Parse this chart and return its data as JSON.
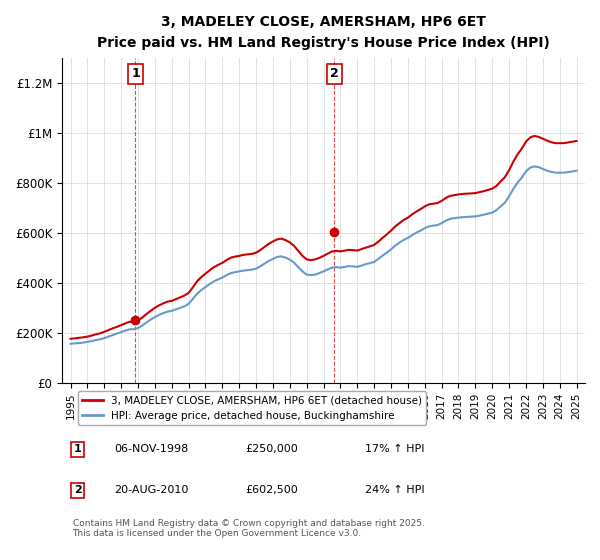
{
  "title": "3, MADELEY CLOSE, AMERSHAM, HP6 6ET",
  "subtitle": "Price paid vs. HM Land Registry's House Price Index (HPI)",
  "xlim": [
    1994.5,
    2025.5
  ],
  "ylim": [
    0,
    1300000
  ],
  "yticks": [
    0,
    200000,
    400000,
    600000,
    800000,
    1000000,
    1200000
  ],
  "ytick_labels": [
    "£0",
    "£200K",
    "£400K",
    "£600K",
    "£800K",
    "£1M",
    "£1.2M"
  ],
  "xticks": [
    1995,
    1996,
    1997,
    1998,
    1999,
    2000,
    2001,
    2002,
    2003,
    2004,
    2005,
    2006,
    2007,
    2008,
    2009,
    2010,
    2011,
    2012,
    2013,
    2014,
    2015,
    2016,
    2017,
    2018,
    2019,
    2020,
    2021,
    2022,
    2023,
    2024,
    2025
  ],
  "sale1_x": 1998.85,
  "sale1_y": 250000,
  "sale1_label": "1",
  "sale2_x": 2010.63,
  "sale2_y": 602500,
  "sale2_label": "2",
  "property_color": "#cc0000",
  "hpi_color": "#6699cc",
  "legend_property": "3, MADELEY CLOSE, AMERSHAM, HP6 6ET (detached house)",
  "legend_hpi": "HPI: Average price, detached house, Buckinghamshire",
  "note1_box": "1",
  "note1_date": "06-NOV-1998",
  "note1_price": "£250,000",
  "note1_hpi": "17% ↑ HPI",
  "note2_box": "2",
  "note2_date": "20-AUG-2010",
  "note2_price": "£602,500",
  "note2_hpi": "24% ↑ HPI",
  "footer": "Contains HM Land Registry data © Crown copyright and database right 2025.\nThis data is licensed under the Open Government Licence v3.0.",
  "hpi_data_x": [
    1995.0,
    1995.25,
    1995.5,
    1995.75,
    1996.0,
    1996.25,
    1996.5,
    1996.75,
    1997.0,
    1997.25,
    1997.5,
    1997.75,
    1998.0,
    1998.25,
    1998.5,
    1998.75,
    1999.0,
    1999.25,
    1999.5,
    1999.75,
    2000.0,
    2000.25,
    2000.5,
    2000.75,
    2001.0,
    2001.25,
    2001.5,
    2001.75,
    2002.0,
    2002.25,
    2002.5,
    2002.75,
    2003.0,
    2003.25,
    2003.5,
    2003.75,
    2004.0,
    2004.25,
    2004.5,
    2004.75,
    2005.0,
    2005.25,
    2005.5,
    2005.75,
    2006.0,
    2006.25,
    2006.5,
    2006.75,
    2007.0,
    2007.25,
    2007.5,
    2007.75,
    2008.0,
    2008.25,
    2008.5,
    2008.75,
    2009.0,
    2009.25,
    2009.5,
    2009.75,
    2010.0,
    2010.25,
    2010.5,
    2010.75,
    2011.0,
    2011.25,
    2011.5,
    2011.75,
    2012.0,
    2012.25,
    2012.5,
    2012.75,
    2013.0,
    2013.25,
    2013.5,
    2013.75,
    2014.0,
    2014.25,
    2014.5,
    2014.75,
    2015.0,
    2015.25,
    2015.5,
    2015.75,
    2016.0,
    2016.25,
    2016.5,
    2016.75,
    2017.0,
    2017.25,
    2017.5,
    2017.75,
    2018.0,
    2018.25,
    2018.5,
    2018.75,
    2019.0,
    2019.25,
    2019.5,
    2019.75,
    2020.0,
    2020.25,
    2020.5,
    2020.75,
    2021.0,
    2021.25,
    2021.5,
    2021.75,
    2022.0,
    2022.25,
    2022.5,
    2022.75,
    2023.0,
    2023.25,
    2023.5,
    2023.75,
    2024.0,
    2024.25,
    2024.5,
    2024.75,
    2025.0
  ],
  "hpi_data_y": [
    155000,
    157000,
    158000,
    160000,
    163000,
    166000,
    170000,
    173000,
    178000,
    184000,
    190000,
    196000,
    202000,
    208000,
    213000,
    214000,
    218000,
    228000,
    240000,
    252000,
    262000,
    271000,
    278000,
    284000,
    287000,
    293000,
    299000,
    305000,
    315000,
    335000,
    355000,
    370000,
    382000,
    394000,
    405000,
    413000,
    420000,
    430000,
    438000,
    442000,
    445000,
    448000,
    450000,
    452000,
    456000,
    465000,
    476000,
    487000,
    495000,
    503000,
    505000,
    500000,
    492000,
    480000,
    462000,
    445000,
    432000,
    430000,
    432000,
    438000,
    445000,
    453000,
    460000,
    462000,
    460000,
    463000,
    466000,
    465000,
    463000,
    468000,
    474000,
    478000,
    483000,
    495000,
    508000,
    520000,
    533000,
    548000,
    560000,
    571000,
    579000,
    590000,
    600000,
    608000,
    618000,
    625000,
    628000,
    630000,
    638000,
    648000,
    655000,
    658000,
    660000,
    662000,
    663000,
    664000,
    665000,
    668000,
    672000,
    676000,
    680000,
    690000,
    705000,
    720000,
    745000,
    775000,
    800000,
    820000,
    845000,
    860000,
    865000,
    862000,
    855000,
    848000,
    843000,
    840000,
    840000,
    840000,
    842000,
    845000,
    848000
  ],
  "property_data_x": [
    1995.0,
    1995.25,
    1995.5,
    1995.75,
    1996.0,
    1996.25,
    1996.5,
    1996.75,
    1997.0,
    1997.25,
    1997.5,
    1997.75,
    1998.0,
    1998.25,
    1998.5,
    1998.75,
    1999.0,
    1999.25,
    1999.5,
    1999.75,
    2000.0,
    2000.25,
    2000.5,
    2000.75,
    2001.0,
    2001.25,
    2001.5,
    2001.75,
    2002.0,
    2002.25,
    2002.5,
    2002.75,
    2003.0,
    2003.25,
    2003.5,
    2003.75,
    2004.0,
    2004.25,
    2004.5,
    2004.75,
    2005.0,
    2005.25,
    2005.5,
    2005.75,
    2006.0,
    2006.25,
    2006.5,
    2006.75,
    2007.0,
    2007.25,
    2007.5,
    2007.75,
    2008.0,
    2008.25,
    2008.5,
    2008.75,
    2009.0,
    2009.25,
    2009.5,
    2009.75,
    2010.0,
    2010.25,
    2010.5,
    2010.75,
    2011.0,
    2011.25,
    2011.5,
    2011.75,
    2012.0,
    2012.25,
    2012.5,
    2012.75,
    2013.0,
    2013.25,
    2013.5,
    2013.75,
    2014.0,
    2014.25,
    2014.5,
    2014.75,
    2015.0,
    2015.25,
    2015.5,
    2015.75,
    2016.0,
    2016.25,
    2016.5,
    2016.75,
    2017.0,
    2017.25,
    2017.5,
    2017.75,
    2018.0,
    2018.25,
    2018.5,
    2018.75,
    2019.0,
    2019.25,
    2019.5,
    2019.75,
    2020.0,
    2020.25,
    2020.5,
    2020.75,
    2021.0,
    2021.25,
    2021.5,
    2021.75,
    2022.0,
    2022.25,
    2022.5,
    2022.75,
    2023.0,
    2023.25,
    2023.5,
    2023.75,
    2024.0,
    2024.25,
    2024.5,
    2024.75,
    2025.0
  ],
  "property_data_y": [
    175000,
    177000,
    179000,
    181000,
    184000,
    188000,
    193000,
    197000,
    203000,
    210000,
    217000,
    223000,
    230000,
    237000,
    243000,
    244000,
    249000,
    260000,
    274000,
    287000,
    299000,
    309000,
    317000,
    324000,
    327000,
    334000,
    341000,
    348000,
    359000,
    381000,
    405000,
    422000,
    436000,
    449000,
    462000,
    471000,
    479000,
    490000,
    500000,
    504000,
    507000,
    511000,
    513000,
    515000,
    520000,
    530000,
    543000,
    555000,
    565000,
    573000,
    576000,
    570000,
    561000,
    547000,
    527000,
    507000,
    493000,
    490000,
    493000,
    499000,
    507000,
    516000,
    525000,
    527000,
    525000,
    528000,
    531000,
    530000,
    528000,
    534000,
    540000,
    545000,
    551000,
    564000,
    579000,
    593000,
    608000,
    625000,
    638000,
    651000,
    660000,
    673000,
    684000,
    694000,
    705000,
    713000,
    716000,
    718000,
    727000,
    739000,
    747000,
    750000,
    753000,
    755000,
    756000,
    757000,
    758000,
    762000,
    766000,
    771000,
    776000,
    787000,
    805000,
    822000,
    850000,
    884000,
    913000,
    936000,
    964000,
    981000,
    987000,
    983000,
    976000,
    968000,
    962000,
    958000,
    958000,
    958000,
    961000,
    964000,
    967000
  ]
}
